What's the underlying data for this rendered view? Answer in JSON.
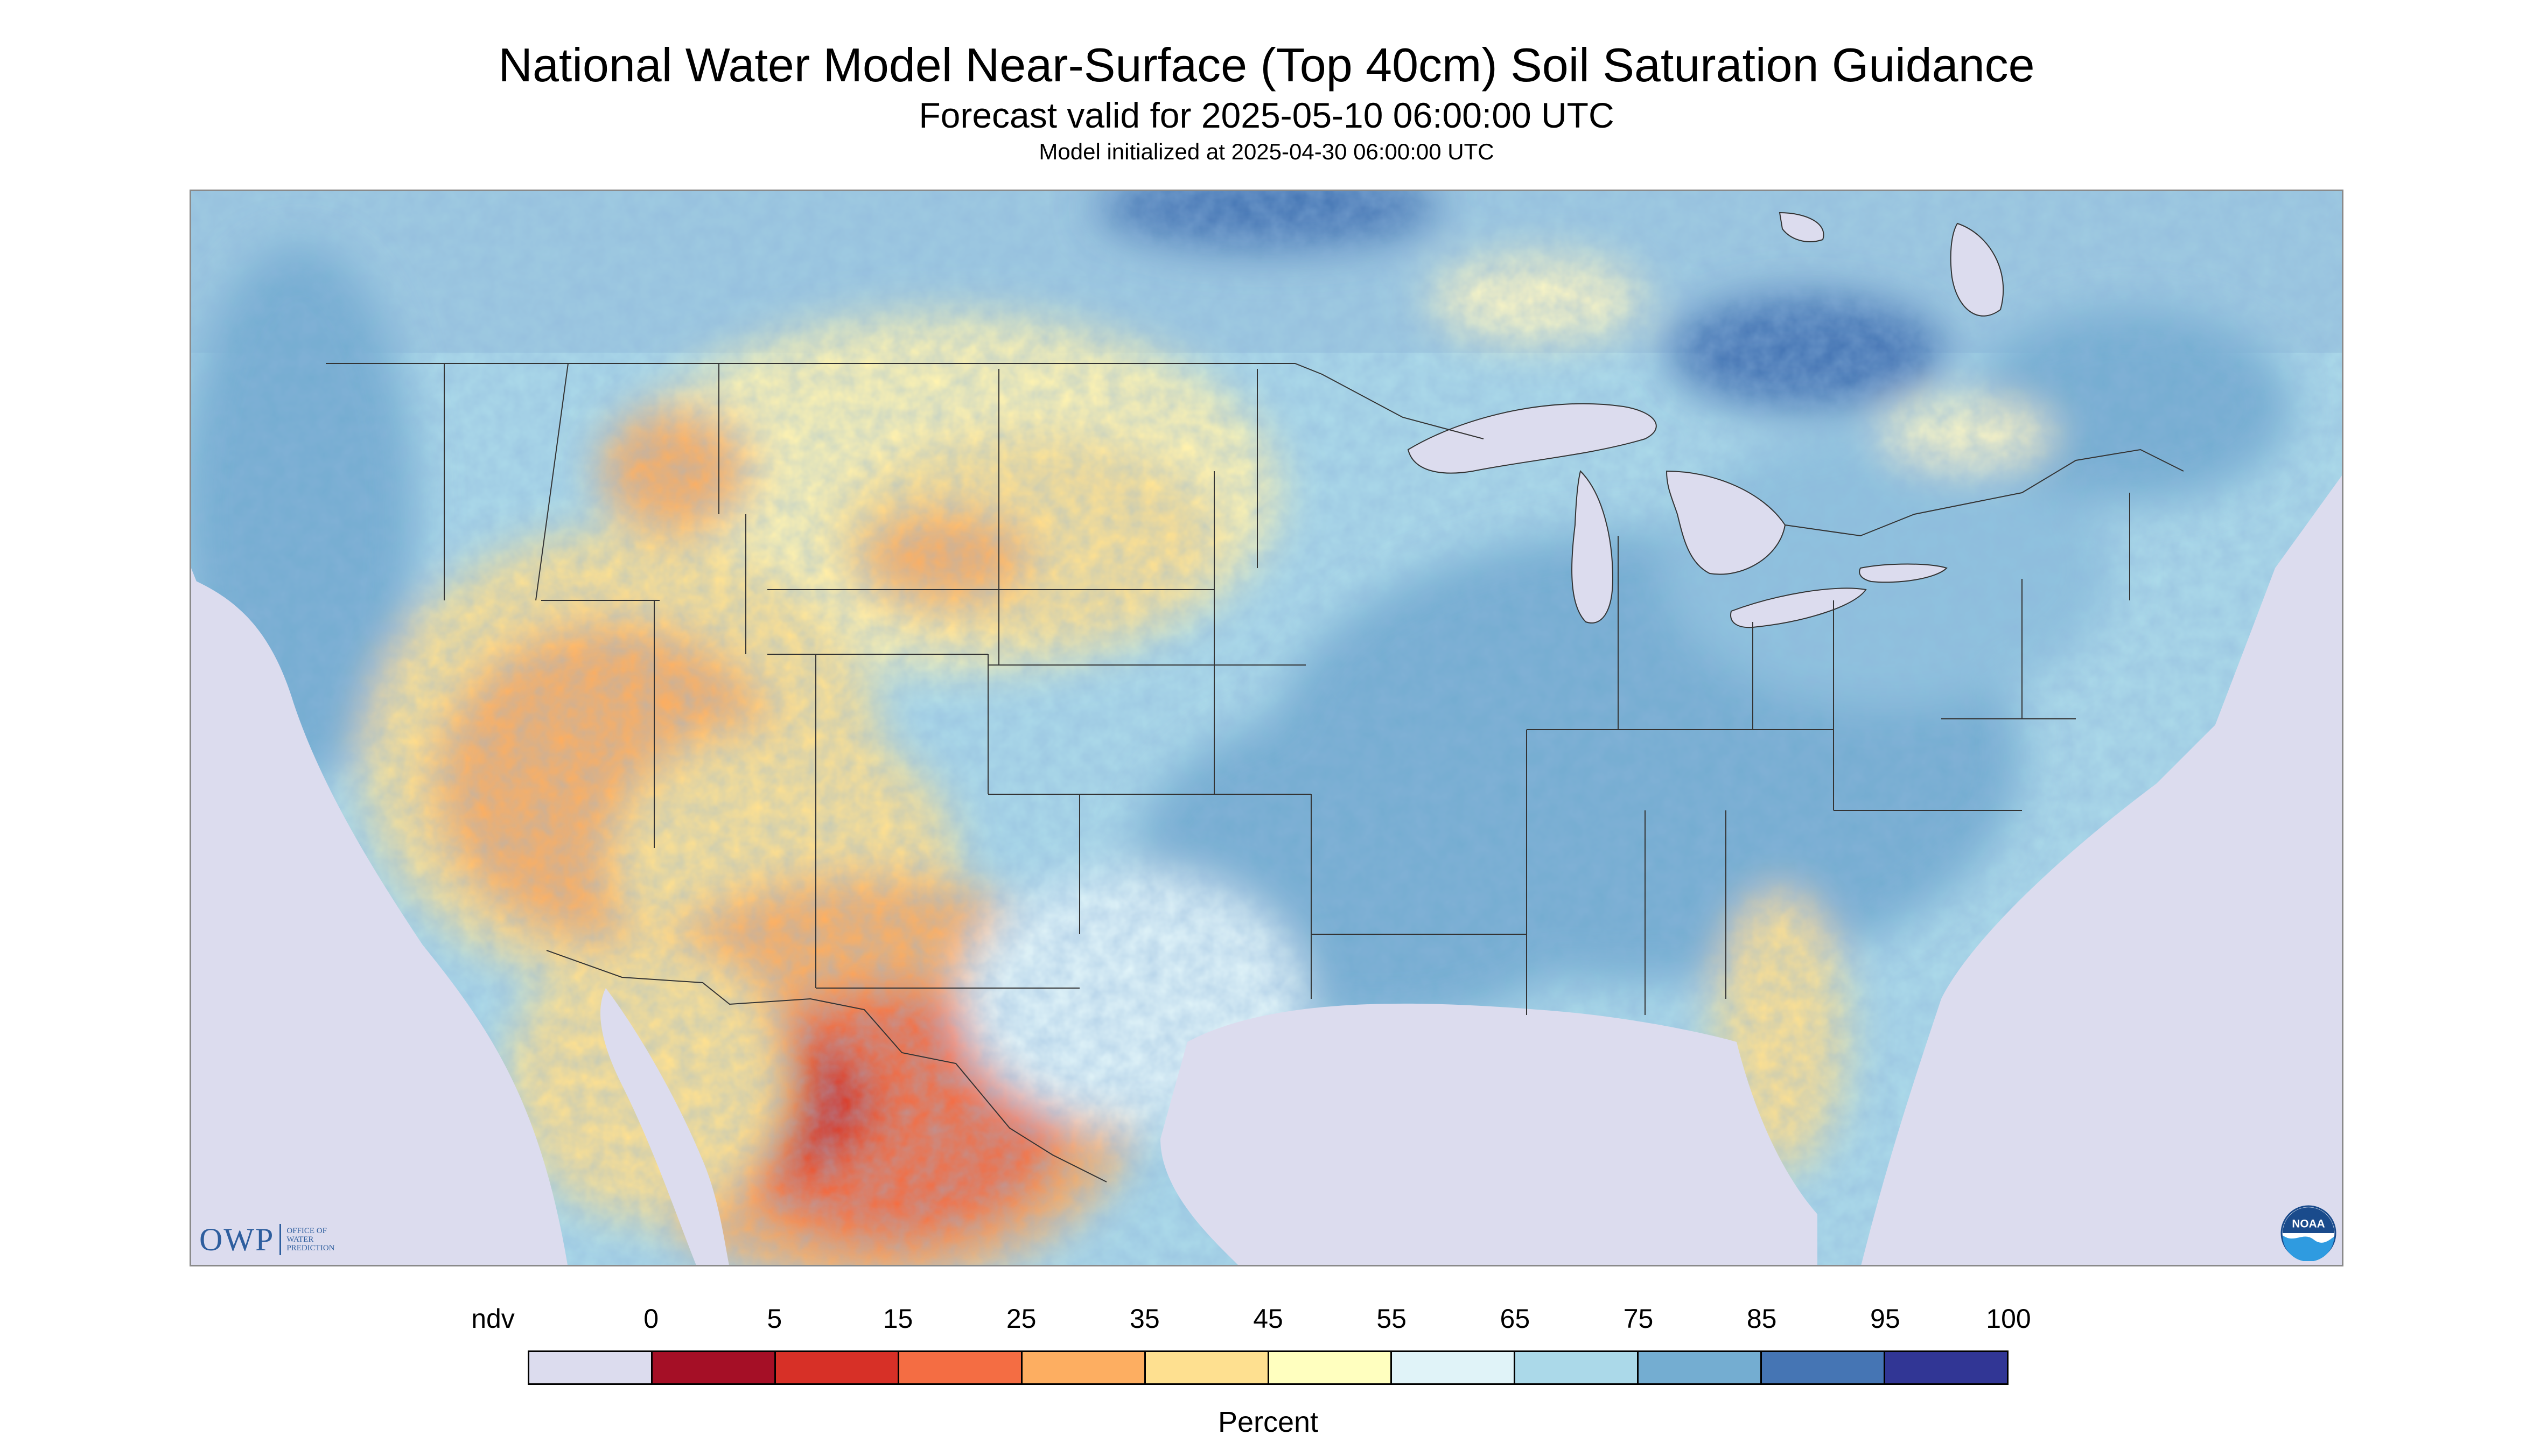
{
  "header": {
    "title": "National Water Model Near-Surface (Top 40cm) Soil Saturation Guidance",
    "subtitle": "Forecast valid for 2025-05-10 06:00:00 UTC",
    "init": "Model initialized at 2025-04-30 06:00:00 UTC"
  },
  "map": {
    "variable": "Near-surface soil saturation",
    "unit": "Percent",
    "colors": {
      "background_ndv": "#dcdcee",
      "borders": "#333333"
    }
  },
  "logos": {
    "owp_mark": "OWP",
    "owp_text": [
      "OFFICE OF",
      "WATER",
      "PREDICTION"
    ],
    "noaa_text": "NOAA"
  },
  "legend": {
    "tick_labels": [
      "ndv",
      "0",
      "5",
      "15",
      "25",
      "35",
      "45",
      "55",
      "65",
      "75",
      "85",
      "95",
      "100"
    ],
    "colors": [
      "#dcdcee",
      "#a50f26",
      "#d73027",
      "#f46d43",
      "#fdae61",
      "#fee090",
      "#ffffbf",
      "#e0f3f8",
      "#abd9e9",
      "#74add1",
      "#4575b4",
      "#313695"
    ],
    "unit_label": "Percent"
  }
}
